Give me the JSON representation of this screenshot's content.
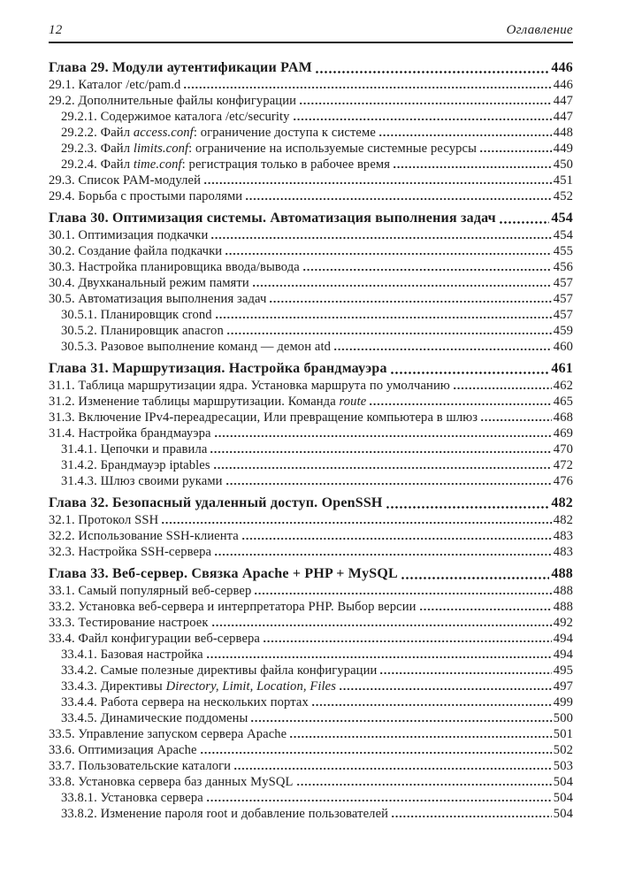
{
  "colors": {
    "background": "#ffffff",
    "ink": "#1c1c1c"
  },
  "header": {
    "page_number": "12",
    "title": "Оглавление"
  },
  "toc": [
    {
      "type": "chapter",
      "parts": [
        {
          "text": "Глава 29. Модули аутентификации PAM",
          "italic": false
        }
      ],
      "page": "446"
    },
    {
      "type": "entry",
      "level": 1,
      "parts": [
        {
          "text": "29.1. Каталог /etc/pam.d",
          "italic": false
        }
      ],
      "page": "446"
    },
    {
      "type": "entry",
      "level": 1,
      "parts": [
        {
          "text": "29.2. Дополнительные файлы конфигурации",
          "italic": false
        }
      ],
      "page": "447"
    },
    {
      "type": "entry",
      "level": 2,
      "parts": [
        {
          "text": "29.2.1. Содержимое каталога /etc/security",
          "italic": false
        }
      ],
      "page": "447"
    },
    {
      "type": "entry",
      "level": 2,
      "parts": [
        {
          "text": "29.2.2. Файл ",
          "italic": false
        },
        {
          "text": "access.conf",
          "italic": true
        },
        {
          "text": ": ограничение доступа к системе",
          "italic": false
        }
      ],
      "page": "448"
    },
    {
      "type": "entry",
      "level": 2,
      "parts": [
        {
          "text": "29.2.3. Файл ",
          "italic": false
        },
        {
          "text": "limits.conf",
          "italic": true
        },
        {
          "text": ": ограничение на используемые системные ресурсы",
          "italic": false
        }
      ],
      "page": "449"
    },
    {
      "type": "entry",
      "level": 2,
      "parts": [
        {
          "text": "29.2.4. Файл ",
          "italic": false
        },
        {
          "text": "time.conf",
          "italic": true
        },
        {
          "text": ": регистрация только в рабочее время",
          "italic": false
        }
      ],
      "page": "450"
    },
    {
      "type": "entry",
      "level": 1,
      "parts": [
        {
          "text": "29.3. Список PAM-модулей",
          "italic": false
        }
      ],
      "page": "451"
    },
    {
      "type": "entry",
      "level": 1,
      "parts": [
        {
          "text": "29.4. Борьба с простыми паролями",
          "italic": false
        }
      ],
      "page": "452"
    },
    {
      "type": "chapter",
      "parts": [
        {
          "text": "Глава 30. Оптимизация системы. Автоматизация выполнения задач",
          "italic": false
        }
      ],
      "page": "454"
    },
    {
      "type": "entry",
      "level": 1,
      "parts": [
        {
          "text": "30.1. Оптимизация подкачки",
          "italic": false
        }
      ],
      "page": "454"
    },
    {
      "type": "entry",
      "level": 1,
      "parts": [
        {
          "text": "30.2. Создание файла подкачки",
          "italic": false
        }
      ],
      "page": "455"
    },
    {
      "type": "entry",
      "level": 1,
      "parts": [
        {
          "text": "30.3. Настройка планировщика ввода/вывода",
          "italic": false
        }
      ],
      "page": "456"
    },
    {
      "type": "entry",
      "level": 1,
      "parts": [
        {
          "text": "30.4. Двухканальный режим памяти",
          "italic": false
        }
      ],
      "page": "457"
    },
    {
      "type": "entry",
      "level": 1,
      "parts": [
        {
          "text": "30.5. Автоматизация выполнения задач",
          "italic": false
        }
      ],
      "page": "457"
    },
    {
      "type": "entry",
      "level": 2,
      "parts": [
        {
          "text": "30.5.1. Планировщик crond",
          "italic": false
        }
      ],
      "page": "457"
    },
    {
      "type": "entry",
      "level": 2,
      "parts": [
        {
          "text": "30.5.2. Планировщик anacron",
          "italic": false
        }
      ],
      "page": "459"
    },
    {
      "type": "entry",
      "level": 2,
      "parts": [
        {
          "text": "30.5.3. Разовое выполнение команд — демон atd",
          "italic": false
        }
      ],
      "page": "460"
    },
    {
      "type": "chapter",
      "parts": [
        {
          "text": "Глава 31. Маршрутизация. Настройка брандмауэра",
          "italic": false
        }
      ],
      "page": "461"
    },
    {
      "type": "entry",
      "level": 1,
      "parts": [
        {
          "text": "31.1. Таблица маршрутизации ядра. Установка маршрута по умолчанию",
          "italic": false
        }
      ],
      "page": "462"
    },
    {
      "type": "entry",
      "level": 1,
      "parts": [
        {
          "text": "31.2. Изменение таблицы маршрутизации. Команда ",
          "italic": false
        },
        {
          "text": "route",
          "italic": true
        }
      ],
      "page": "465"
    },
    {
      "type": "entry",
      "level": 1,
      "parts": [
        {
          "text": "31.3. Включение IPv4-переадресации, Или превращение компьютера в шлюз",
          "italic": false
        }
      ],
      "page": "468"
    },
    {
      "type": "entry",
      "level": 1,
      "parts": [
        {
          "text": "31.4. Настройка брандмауэра",
          "italic": false
        }
      ],
      "page": "469"
    },
    {
      "type": "entry",
      "level": 2,
      "parts": [
        {
          "text": "31.4.1. Цепочки и правила",
          "italic": false
        }
      ],
      "page": "470"
    },
    {
      "type": "entry",
      "level": 2,
      "parts": [
        {
          "text": "31.4.2. Брандмауэр iptables",
          "italic": false
        }
      ],
      "page": "472"
    },
    {
      "type": "entry",
      "level": 2,
      "parts": [
        {
          "text": "31.4.3. Шлюз своими руками",
          "italic": false
        }
      ],
      "page": "476"
    },
    {
      "type": "chapter",
      "parts": [
        {
          "text": "Глава 32. Безопасный удаленный доступ. OpenSSH",
          "italic": false
        }
      ],
      "page": "482"
    },
    {
      "type": "entry",
      "level": 1,
      "parts": [
        {
          "text": "32.1. Протокол SSH",
          "italic": false
        }
      ],
      "page": "482"
    },
    {
      "type": "entry",
      "level": 1,
      "parts": [
        {
          "text": "32.2. Использование SSH-клиента",
          "italic": false
        }
      ],
      "page": "483"
    },
    {
      "type": "entry",
      "level": 1,
      "parts": [
        {
          "text": "32.3. Настройка SSH-сервера",
          "italic": false
        }
      ],
      "page": "483"
    },
    {
      "type": "chapter",
      "parts": [
        {
          "text": "Глава 33. Веб-сервер. Связка Apache + PHP + MySQL",
          "italic": false
        }
      ],
      "page": "488"
    },
    {
      "type": "entry",
      "level": 1,
      "parts": [
        {
          "text": "33.1. Самый популярный веб-сервер",
          "italic": false
        }
      ],
      "page": "488"
    },
    {
      "type": "entry",
      "level": 1,
      "parts": [
        {
          "text": "33.2. Установка веб-сервера и интерпретатора PHP. Выбор версии",
          "italic": false
        }
      ],
      "page": "488"
    },
    {
      "type": "entry",
      "level": 1,
      "parts": [
        {
          "text": "33.3. Тестирование настроек",
          "italic": false
        }
      ],
      "page": "492"
    },
    {
      "type": "entry",
      "level": 1,
      "parts": [
        {
          "text": "33.4. Файл конфигурации веб-сервера",
          "italic": false
        }
      ],
      "page": "494"
    },
    {
      "type": "entry",
      "level": 2,
      "parts": [
        {
          "text": "33.4.1. Базовая настройка",
          "italic": false
        }
      ],
      "page": "494"
    },
    {
      "type": "entry",
      "level": 2,
      "parts": [
        {
          "text": "33.4.2. Самые полезные директивы файла конфигурации",
          "italic": false
        }
      ],
      "page": "495"
    },
    {
      "type": "entry",
      "level": 2,
      "parts": [
        {
          "text": "33.4.3. Директивы ",
          "italic": false
        },
        {
          "text": "Directory, Limit, Location, Files",
          "italic": true
        }
      ],
      "page": "497"
    },
    {
      "type": "entry",
      "level": 2,
      "parts": [
        {
          "text": "33.4.4. Работа сервера на нескольких портах",
          "italic": false
        }
      ],
      "page": "499"
    },
    {
      "type": "entry",
      "level": 2,
      "parts": [
        {
          "text": "33.4.5. Динамические поддомены",
          "italic": false
        }
      ],
      "page": "500"
    },
    {
      "type": "entry",
      "level": 1,
      "parts": [
        {
          "text": "33.5. Управление запуском сервера Apache",
          "italic": false
        }
      ],
      "page": "501"
    },
    {
      "type": "entry",
      "level": 1,
      "parts": [
        {
          "text": "33.6. Оптимизация Apache",
          "italic": false
        }
      ],
      "page": "502"
    },
    {
      "type": "entry",
      "level": 1,
      "parts": [
        {
          "text": "33.7. Пользовательские каталоги",
          "italic": false
        }
      ],
      "page": "503"
    },
    {
      "type": "entry",
      "level": 1,
      "parts": [
        {
          "text": "33.8. Установка сервера баз данных MySQL",
          "italic": false
        }
      ],
      "page": "504"
    },
    {
      "type": "entry",
      "level": 2,
      "parts": [
        {
          "text": "33.8.1. Установка сервера",
          "italic": false
        }
      ],
      "page": "504"
    },
    {
      "type": "entry",
      "level": 2,
      "parts": [
        {
          "text": "33.8.2. Изменение пароля root и добавление пользователей",
          "italic": false
        }
      ],
      "page": "504"
    }
  ]
}
